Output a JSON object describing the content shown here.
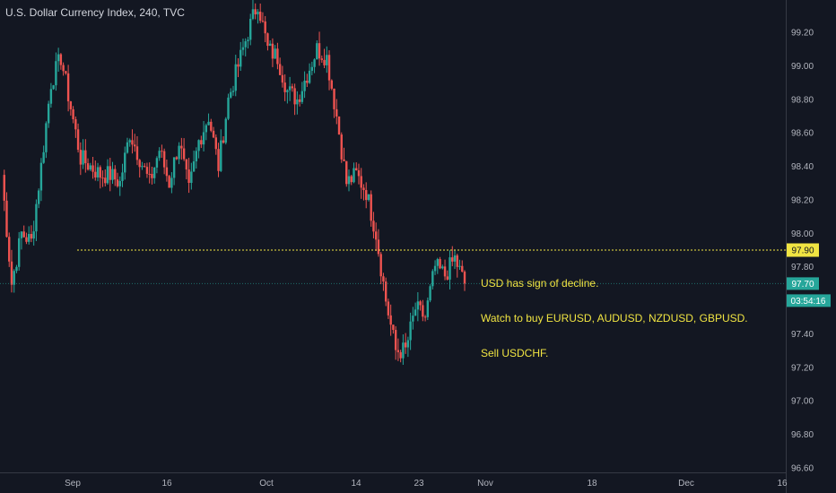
{
  "header": {
    "title": "U.S. Dollar Currency Index, 240, TVC"
  },
  "annotation": {
    "lines": [
      "USD has sign of decline.",
      "Watch to buy EURUSD, AUDUSD, NZDUSD, GBPUSD.",
      "Sell USDCHF."
    ]
  },
  "colors": {
    "background": "#131722",
    "up": "#26a69a",
    "down": "#ef5350",
    "level_line": "#f0e442",
    "last_price": "#26a69a",
    "axis_text": "#b2b5be"
  },
  "chart_data": {
    "type": "candlestick",
    "title": "U.S. Dollar Currency Index, 240, TVC",
    "ylim": [
      96.6,
      99.4
    ],
    "y_ticks": [
      "99.20",
      "99.00",
      "98.80",
      "98.60",
      "98.40",
      "98.20",
      "98.00",
      "97.80",
      "97.60",
      "97.40",
      "97.20",
      "97.00",
      "96.80",
      "96.60"
    ],
    "x_ticks": [
      "Sep",
      "16",
      "Oct",
      "14",
      "23",
      "Nov",
      "18",
      "Dec",
      "16"
    ],
    "horizontal_level": {
      "value": 97.9,
      "label": "97.90"
    },
    "last_price": {
      "value": 97.7,
      "label": "97.70",
      "countdown": "03:54:16"
    },
    "series": [
      {
        "date": "Aug 23",
        "close": 98.35
      },
      {
        "date": "Aug 26",
        "close": 97.7
      },
      {
        "date": "Aug 27",
        "close": 98.0
      },
      {
        "date": "Aug 28",
        "close": 97.95
      },
      {
        "date": "Aug 29",
        "close": 98.4
      },
      {
        "date": "Aug 30",
        "close": 98.9
      },
      {
        "date": "Sep 2",
        "close": 99.05
      },
      {
        "date": "Sep 3",
        "close": 98.75
      },
      {
        "date": "Sep 4",
        "close": 98.45
      },
      {
        "date": "Sep 5",
        "close": 98.4
      },
      {
        "date": "Sep 6",
        "close": 98.35
      },
      {
        "date": "Sep 9",
        "close": 98.35
      },
      {
        "date": "Sep 10",
        "close": 98.3
      },
      {
        "date": "Sep 11",
        "close": 98.6
      },
      {
        "date": "Sep 12",
        "close": 98.45
      },
      {
        "date": "Sep 13",
        "close": 98.3
      },
      {
        "date": "Sep 16",
        "close": 98.5
      },
      {
        "date": "Sep 17",
        "close": 98.3
      },
      {
        "date": "Sep 18",
        "close": 98.55
      },
      {
        "date": "Sep 19",
        "close": 98.25
      },
      {
        "date": "Sep 20",
        "close": 98.55
      },
      {
        "date": "Sep 23",
        "close": 98.7
      },
      {
        "date": "Sep 24",
        "close": 98.4
      },
      {
        "date": "Sep 25",
        "close": 98.8
      },
      {
        "date": "Sep 26",
        "close": 99.0
      },
      {
        "date": "Sep 27",
        "close": 99.2
      },
      {
        "date": "Sep 30",
        "close": 99.38
      },
      {
        "date": "Oct 1",
        "close": 99.1
      },
      {
        "date": "Oct 2",
        "close": 99.05
      },
      {
        "date": "Oct 3",
        "close": 98.85
      },
      {
        "date": "Oct 4",
        "close": 98.8
      },
      {
        "date": "Oct 7",
        "close": 98.95
      },
      {
        "date": "Oct 8",
        "close": 99.1
      },
      {
        "date": "Oct 9",
        "close": 99.05
      },
      {
        "date": "Oct 10",
        "close": 98.7
      },
      {
        "date": "Oct 11",
        "close": 98.3
      },
      {
        "date": "Oct 14",
        "close": 98.35
      },
      {
        "date": "Oct 15",
        "close": 98.25
      },
      {
        "date": "Oct 16",
        "close": 98.0
      },
      {
        "date": "Oct 17",
        "close": 97.6
      },
      {
        "date": "Oct 18",
        "close": 97.3
      },
      {
        "date": "Oct 21",
        "close": 97.3
      },
      {
        "date": "Oct 22",
        "close": 97.55
      },
      {
        "date": "Oct 23",
        "close": 97.5
      },
      {
        "date": "Oct 24",
        "close": 97.8
      },
      {
        "date": "Oct 25",
        "close": 97.75
      },
      {
        "date": "Oct 28",
        "close": 97.85
      },
      {
        "date": "Oct 29",
        "close": 97.7
      }
    ]
  }
}
